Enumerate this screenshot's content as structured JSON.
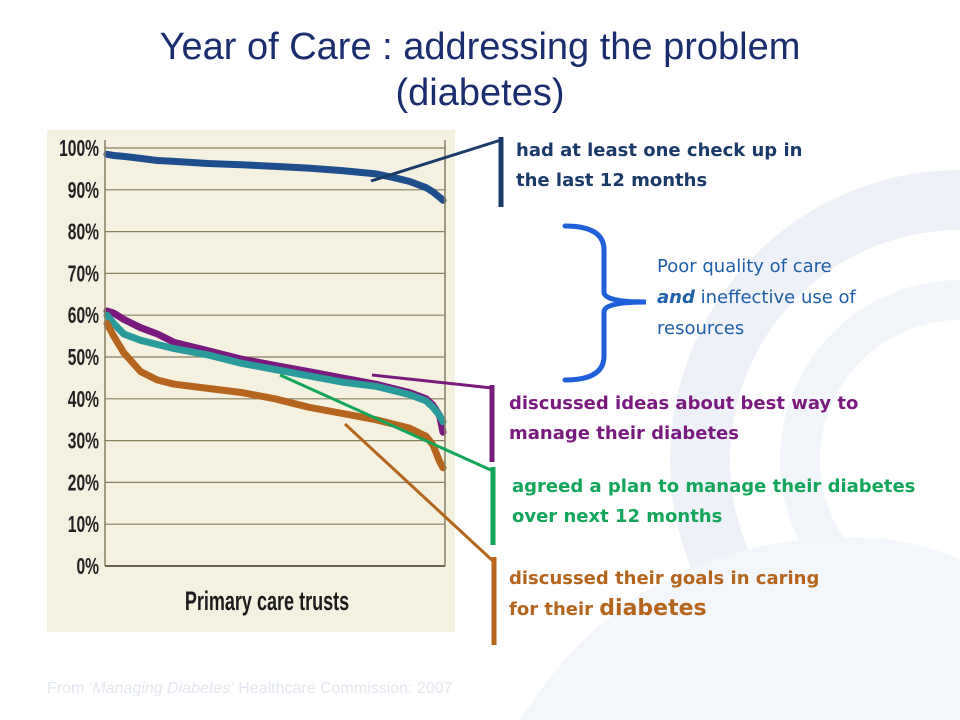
{
  "slide": {
    "title_line1": "Year of Care : addressing the problem",
    "title_line2": "(diabetes)",
    "source_prefix": "From ",
    "source_italic": "‘Managing Diabetes’",
    "source_suffix": " Healthcare Commission: 2007"
  },
  "callouts": {
    "checkup": {
      "line1": "had at least one check up in",
      "line2": "the last 12 months",
      "color": "#1a3a6a"
    },
    "discussed": {
      "line1": "discussed ideas about best way to",
      "line2": "manage their diabetes",
      "color": "#7a1a7e"
    },
    "agreed": {
      "line1": "agreed a plan to manage their diabetes",
      "line2": "over next 12 months",
      "color": "#13a55a"
    },
    "goals": {
      "line1": "discussed their goals in caring",
      "line2_prefix": "for their ",
      "line2_big": "diabetes",
      "color": "#b5651d"
    },
    "brace": {
      "line1": "Poor quality of care",
      "line2_em": "and",
      "line2_rest": " ineffective use of",
      "line3": "resources",
      "color": "#1f5fa8"
    }
  },
  "chart_data": {
    "type": "line",
    "title": "",
    "xlabel": "Primary care trusts",
    "ylabel": "",
    "ylim": [
      0,
      100
    ],
    "yticks": [
      "0%",
      "10%",
      "20%",
      "30%",
      "40%",
      "50%",
      "60%",
      "70%",
      "80%",
      "90%",
      "100%"
    ],
    "grid": true,
    "x": [
      0,
      2,
      5,
      10,
      15,
      20,
      30,
      40,
      50,
      60,
      70,
      80,
      85,
      90,
      95,
      97,
      99,
      100
    ],
    "series": [
      {
        "color": "#1f4e8c",
        "values": [
          98.5,
          98.2,
          98,
          97.5,
          97,
          96.8,
          96.3,
          96,
          95.6,
          95.2,
          94.6,
          93.8,
          93,
          92,
          90.5,
          89.5,
          88.2,
          87.5
        ]
      },
      {
        "color": "#7a1a7e",
        "values": [
          61,
          60.5,
          59,
          57,
          55.5,
          53.5,
          51.5,
          49.5,
          48,
          46.5,
          45,
          43.5,
          42.5,
          41.5,
          40,
          38.5,
          36,
          32
        ]
      },
      {
        "color": "#2a9a9a",
        "values": [
          60,
          58,
          55.5,
          54,
          53,
          52,
          50.5,
          48.5,
          47,
          45.5,
          44,
          43,
          42,
          41,
          39.5,
          38,
          36,
          34.5
        ]
      },
      {
        "color": "#b5651d",
        "values": [
          58,
          55,
          51,
          46.5,
          44.5,
          43.5,
          42.5,
          41.5,
          40,
          38,
          36.5,
          35,
          34,
          33,
          31,
          29,
          25,
          23.5
        ]
      }
    ]
  }
}
